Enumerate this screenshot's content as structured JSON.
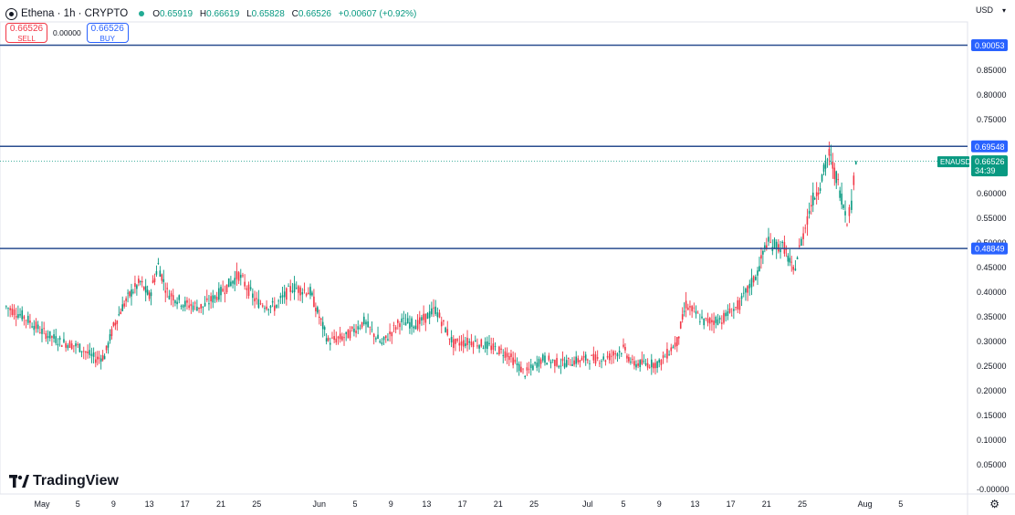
{
  "header": {
    "title": "Ethena · 1h · CRYPTO",
    "ohlc": {
      "o_label": "O",
      "o": "0.65919",
      "h_label": "H",
      "h": "0.66619",
      "l_label": "L",
      "l": "0.65828",
      "c_label": "C",
      "c": "0.66526",
      "change": "+0.00607 (+0.92%)"
    },
    "currency": "USD"
  },
  "trade": {
    "sell_price": "0.66526",
    "sell_label": "SELL",
    "spread": "0.00000",
    "buy_price": "0.66526",
    "buy_label": "BUY"
  },
  "branding": "TradingView",
  "colors": {
    "up": "#089981",
    "down": "#f23645",
    "level_line": "#2a4d8f",
    "level_badge": "#2962ff",
    "price_badge": "#089981"
  },
  "chart_data": {
    "type": "candlestick",
    "symbol": "ENAUSD",
    "interval": "1h",
    "ylim": [
      -0.0,
      0.9
    ],
    "y_ticks": [
      "0.85000",
      "0.80000",
      "0.75000",
      "0.65000",
      "0.60000",
      "0.55000",
      "0.50000",
      "0.45000",
      "0.40000",
      "0.35000",
      "0.30000",
      "0.25000",
      "0.20000",
      "0.15000",
      "0.10000",
      "0.05000",
      "-0.00000"
    ],
    "x_ticks": [
      "May",
      "5",
      "9",
      "13",
      "17",
      "21",
      "25",
      "Jun",
      "5",
      "9",
      "13",
      "17",
      "21",
      "25",
      "Jul",
      "5",
      "9",
      "13",
      "17",
      "21",
      "25",
      "Aug",
      "5"
    ],
    "levels": [
      {
        "label": "0.90053",
        "value": 0.90053
      },
      {
        "label": "0.69548",
        "value": 0.69548
      },
      {
        "label": "0.48849",
        "value": 0.48849
      }
    ],
    "last_price": {
      "symbol": "ENAUSD",
      "label": "0.66526",
      "value": 0.66526,
      "countdown": "34:39"
    },
    "price_path": [
      {
        "date": "2024-04-27",
        "close": 0.37
      },
      {
        "date": "2024-04-29",
        "close": 0.35
      },
      {
        "date": "2024-05-01",
        "close": 0.32
      },
      {
        "date": "2024-05-03",
        "close": 0.3
      },
      {
        "date": "2024-05-05",
        "close": 0.29
      },
      {
        "date": "2024-05-07",
        "close": 0.265
      },
      {
        "date": "2024-05-08",
        "close": 0.27
      },
      {
        "date": "2024-05-09",
        "close": 0.33
      },
      {
        "date": "2024-05-10",
        "close": 0.37
      },
      {
        "date": "2024-05-11",
        "close": 0.4
      },
      {
        "date": "2024-05-12",
        "close": 0.42
      },
      {
        "date": "2024-05-13",
        "close": 0.39
      },
      {
        "date": "2024-05-14",
        "close": 0.455
      },
      {
        "date": "2024-05-15",
        "close": 0.4
      },
      {
        "date": "2024-05-17",
        "close": 0.375
      },
      {
        "date": "2024-05-19",
        "close": 0.37
      },
      {
        "date": "2024-05-21",
        "close": 0.4
      },
      {
        "date": "2024-05-23",
        "close": 0.435
      },
      {
        "date": "2024-05-25",
        "close": 0.38
      },
      {
        "date": "2024-05-27",
        "close": 0.37
      },
      {
        "date": "2024-05-29",
        "close": 0.41
      },
      {
        "date": "2024-05-31",
        "close": 0.4
      },
      {
        "date": "2024-06-01",
        "close": 0.35
      },
      {
        "date": "2024-06-02",
        "close": 0.3
      },
      {
        "date": "2024-06-04",
        "close": 0.31
      },
      {
        "date": "2024-06-06",
        "close": 0.34
      },
      {
        "date": "2024-06-08",
        "close": 0.295
      },
      {
        "date": "2024-06-10",
        "close": 0.34
      },
      {
        "date": "2024-06-12",
        "close": 0.335
      },
      {
        "date": "2024-06-14",
        "close": 0.365
      },
      {
        "date": "2024-06-16",
        "close": 0.295
      },
      {
        "date": "2024-06-18",
        "close": 0.3
      },
      {
        "date": "2024-06-20",
        "close": 0.29
      },
      {
        "date": "2024-06-22",
        "close": 0.275
      },
      {
        "date": "2024-06-24",
        "close": 0.235
      },
      {
        "date": "2024-06-26",
        "close": 0.265
      },
      {
        "date": "2024-06-28",
        "close": 0.255
      },
      {
        "date": "2024-07-01",
        "close": 0.265
      },
      {
        "date": "2024-07-03",
        "close": 0.265
      },
      {
        "date": "2024-07-05",
        "close": 0.285
      },
      {
        "date": "2024-07-06",
        "close": 0.255
      },
      {
        "date": "2024-07-09",
        "close": 0.255
      },
      {
        "date": "2024-07-11",
        "close": 0.3
      },
      {
        "date": "2024-07-12",
        "close": 0.375
      },
      {
        "date": "2024-07-14",
        "close": 0.34
      },
      {
        "date": "2024-07-16",
        "close": 0.345
      },
      {
        "date": "2024-07-18",
        "close": 0.375
      },
      {
        "date": "2024-07-20",
        "close": 0.44
      },
      {
        "date": "2024-07-21",
        "close": 0.5
      },
      {
        "date": "2024-07-23",
        "close": 0.49
      },
      {
        "date": "2024-07-24",
        "close": 0.44
      },
      {
        "date": "2024-07-26",
        "close": 0.58
      },
      {
        "date": "2024-07-27",
        "close": 0.62
      },
      {
        "date": "2024-07-28",
        "close": 0.68
      },
      {
        "date": "2024-07-29",
        "close": 0.62
      },
      {
        "date": "2024-07-30",
        "close": 0.55
      },
      {
        "date": "2024-07-30T12:00",
        "close": 0.58
      },
      {
        "date": "2024-07-31",
        "close": 0.665
      }
    ]
  }
}
